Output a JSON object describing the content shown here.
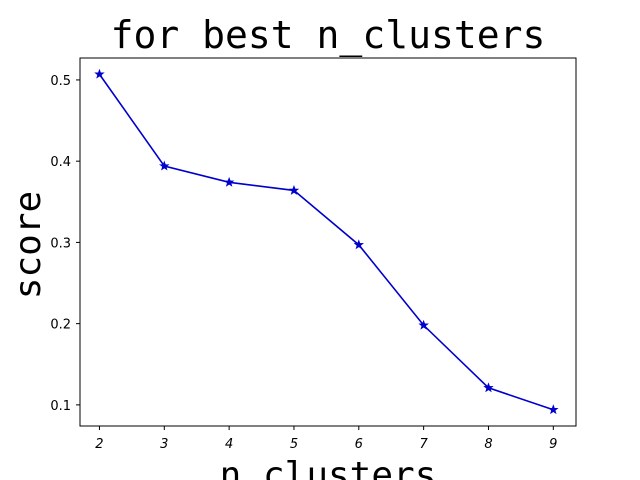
{
  "chart_data": {
    "type": "line",
    "title": "for best n_clusters",
    "xlabel": "n_clusters",
    "ylabel": "score",
    "x": [
      2,
      3,
      4,
      5,
      6,
      7,
      8,
      9
    ],
    "series": [
      {
        "name": "score",
        "values": [
          0.507,
          0.394,
          0.374,
          0.364,
          0.297,
          0.198,
          0.121,
          0.094
        ],
        "color": "#0000cd",
        "marker": "star"
      }
    ],
    "xticks": [
      "2",
      "3",
      "4",
      "5",
      "6",
      "7",
      "8",
      "9"
    ],
    "yticks": [
      0.1,
      0.2,
      0.3,
      0.4,
      0.5
    ],
    "ytick_labels": [
      "0.1",
      "0.2",
      "0.3",
      "0.4",
      "0.5"
    ],
    "xlim": [
      1.7,
      9.35
    ],
    "ylim": [
      0.074,
      0.527
    ],
    "grid": false
  }
}
